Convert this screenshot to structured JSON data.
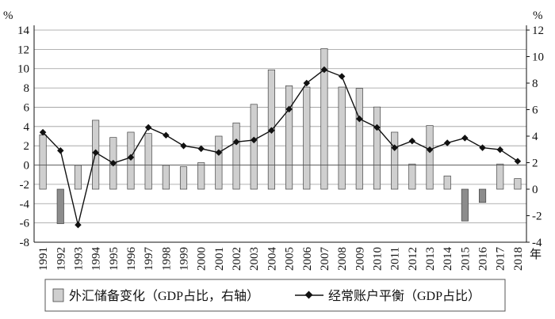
{
  "chart_data": {
    "type": "bar+line",
    "title": "",
    "categories": [
      "1991",
      "1992",
      "1993",
      "1994",
      "1995",
      "1996",
      "1997",
      "1998",
      "1999",
      "2000",
      "2001",
      "2002",
      "2003",
      "2004",
      "2005",
      "2006",
      "2007",
      "2008",
      "2009",
      "2010",
      "2011",
      "2012",
      "2013",
      "2014",
      "2015",
      "2016",
      "2017",
      "2018"
    ],
    "x_unit": "年",
    "left_axis": {
      "unit": "%",
      "ylim": [
        -8,
        14
      ],
      "ticks": [
        -8,
        -6,
        -4,
        -2,
        0,
        2,
        4,
        6,
        8,
        10,
        12,
        14
      ]
    },
    "right_axis": {
      "unit": "%",
      "ylim": [
        -4,
        12
      ],
      "ticks": [
        -4,
        -2,
        0,
        2,
        4,
        6,
        8,
        10,
        12
      ]
    },
    "series": [
      {
        "name": "外汇储备变化（GDP占比，右轴）",
        "kind": "bar",
        "axis": "right",
        "color": "#cfcfcf",
        "values": [
          4.1,
          -2.6,
          1.8,
          5.2,
          3.9,
          4.3,
          4.2,
          1.8,
          1.7,
          2.0,
          4.0,
          5.0,
          6.4,
          9.0,
          7.8,
          7.7,
          10.6,
          7.7,
          7.6,
          6.2,
          4.3,
          1.9,
          4.8,
          1.0,
          -2.4,
          -1.0,
          1.9,
          0.8
        ]
      },
      {
        "name": "经常账户平衡（GDP占比）",
        "kind": "line",
        "axis": "left",
        "color": "#111111",
        "values": [
          3.4,
          1.5,
          -6.2,
          1.3,
          0.2,
          0.8,
          3.9,
          3.1,
          2.0,
          1.7,
          1.3,
          2.4,
          2.6,
          3.6,
          5.8,
          8.5,
          9.9,
          9.2,
          4.8,
          3.9,
          1.8,
          2.5,
          1.6,
          2.3,
          2.8,
          1.8,
          1.6,
          0.4
        ]
      }
    ],
    "grid": {
      "horizontal": true,
      "vertical": false
    },
    "legend_position": "bottom"
  }
}
